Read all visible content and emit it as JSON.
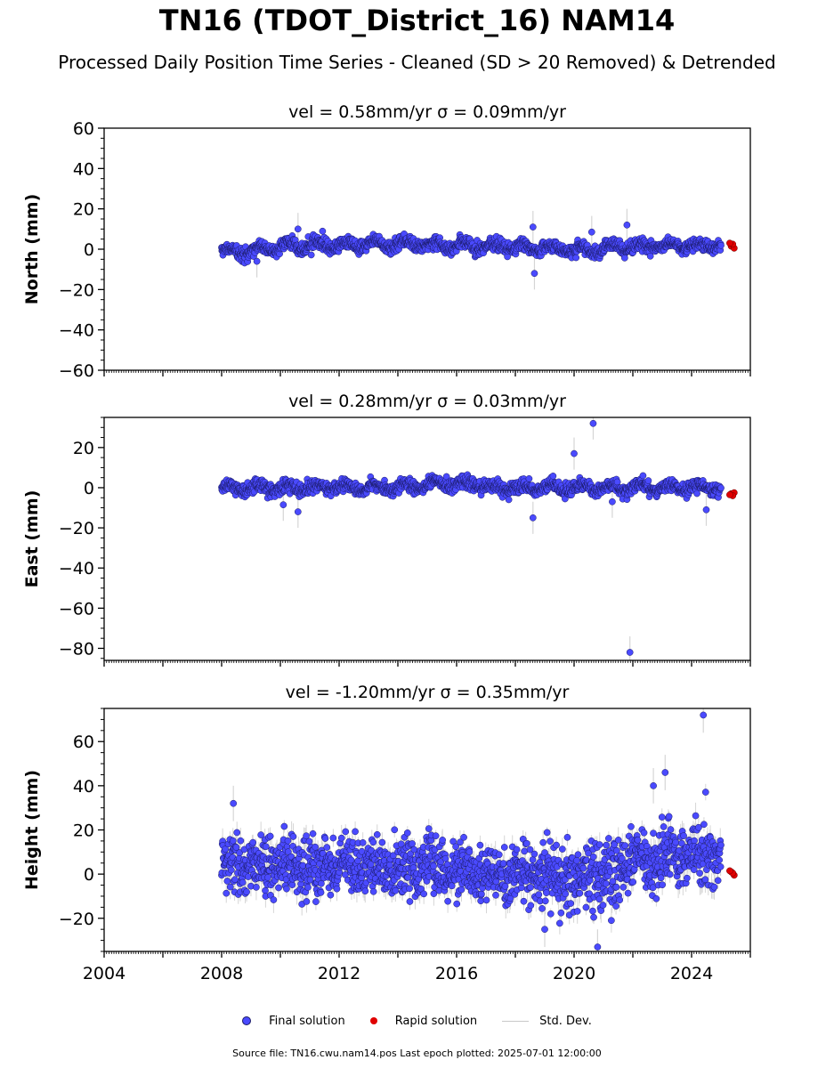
{
  "title": "TN16 (TDOT_District_16) NAM14",
  "subtitle": "Processed Daily Position Time Series - Cleaned (SD > 20 Removed) & Detrended",
  "legend": {
    "final": "Final solution",
    "rapid": "Rapid solution",
    "std": "Std. Dev."
  },
  "footer": "Source file: TN16.cwu.nam14.pos  Last epoch plotted: 2025-07-01 12:00:00",
  "colors": {
    "final": "#4a4aff",
    "rapid": "#e00000",
    "std": "#c8c8c8",
    "edge": "#1a1a66"
  },
  "chart_data": [
    {
      "type": "scatter",
      "name": "north",
      "title": "vel = 0.58mm/yr   σ = 0.09mm/yr",
      "ylabel": "North (mm)",
      "xlim": [
        2004.0,
        2026.0
      ],
      "ylim": [
        -60,
        60
      ],
      "yticks": [
        -60,
        -40,
        -20,
        0,
        20,
        40,
        60
      ],
      "yticklabels": [
        "−60",
        "−40",
        "−20",
        "0",
        "20",
        "40",
        "60"
      ],
      "final_range": [
        2008.0,
        2025.0
      ],
      "scatter_sd": 1.6,
      "err_sd": 1.8,
      "seasonal": [
        {
          "x0": 2008.0,
          "x1": 2010.0,
          "y0": -1.5,
          "y1": 0.5
        },
        {
          "x0": 2010.0,
          "x1": 2015.0,
          "y0": 1.5,
          "y1": 3.0
        },
        {
          "x0": 2015.0,
          "x1": 2019.0,
          "y0": 2.0,
          "y1": 1.0
        },
        {
          "x0": 2019.0,
          "x1": 2021.0,
          "y0": 0.0,
          "y1": -0.5
        },
        {
          "x0": 2021.0,
          "x1": 2025.0,
          "y0": 1.0,
          "y1": 2.0
        }
      ],
      "outliers": [
        {
          "x": 2010.6,
          "y": 10
        },
        {
          "x": 2018.6,
          "y": 11
        },
        {
          "x": 2018.65,
          "y": -12
        },
        {
          "x": 2021.8,
          "y": 12
        },
        {
          "x": 2020.6,
          "y": 8.5
        },
        {
          "x": 2009.2,
          "y": -6
        }
      ],
      "rapid": [
        {
          "x": 2025.35,
          "y": 1.5
        },
        {
          "x": 2025.45,
          "y": 0.5
        },
        {
          "x": 2025.4,
          "y": 2.5
        },
        {
          "x": 2025.3,
          "y": 3
        }
      ]
    },
    {
      "type": "scatter",
      "name": "east",
      "title": "vel = 0.28mm/yr   σ = 0.03mm/yr",
      "ylabel": "East (mm)",
      "xlim": [
        2004.0,
        2026.0
      ],
      "ylim": [
        -86,
        35
      ],
      "yticks": [
        -80,
        -60,
        -40,
        -20,
        0,
        20
      ],
      "yticklabels": [
        "−80",
        "−60",
        "−40",
        "−20",
        "0",
        "20"
      ],
      "final_range": [
        2008.0,
        2025.0
      ],
      "scatter_sd": 1.6,
      "err_sd": 1.8,
      "seasonal": [
        {
          "x0": 2008.0,
          "x1": 2015.0,
          "y0": -0.5,
          "y1": 0.5
        },
        {
          "x0": 2015.0,
          "x1": 2017.0,
          "y0": 2.0,
          "y1": 2.0
        },
        {
          "x0": 2017.0,
          "x1": 2025.0,
          "y0": 0.0,
          "y1": 0.0
        }
      ],
      "outliers": [
        {
          "x": 2010.1,
          "y": -8.5
        },
        {
          "x": 2010.6,
          "y": -12
        },
        {
          "x": 2018.6,
          "y": -15
        },
        {
          "x": 2020.0,
          "y": 17
        },
        {
          "x": 2020.65,
          "y": 32
        },
        {
          "x": 2021.9,
          "y": -82
        },
        {
          "x": 2024.5,
          "y": -11
        },
        {
          "x": 2021.3,
          "y": -7
        }
      ],
      "rapid": [
        {
          "x": 2025.35,
          "y": -3
        },
        {
          "x": 2025.45,
          "y": -2.5
        },
        {
          "x": 2025.4,
          "y": -4
        },
        {
          "x": 2025.3,
          "y": -3.5
        }
      ]
    },
    {
      "type": "scatter",
      "name": "height",
      "title": "vel = -1.20mm/yr   σ = 0.35mm/yr",
      "ylabel": "Height (mm)",
      "xlim": [
        2004.0,
        2026.0
      ],
      "ylim": [
        -35,
        75
      ],
      "yticks": [
        -20,
        0,
        20,
        40,
        60
      ],
      "yticklabels": [
        "−20",
        "0",
        "20",
        "40",
        "60"
      ],
      "xticks": [
        2004,
        2008,
        2012,
        2016,
        2020,
        2024
      ],
      "xticklabels": [
        "2004",
        "2008",
        "2012",
        "2016",
        "2020",
        "2024"
      ],
      "final_range": [
        2008.0,
        2025.0
      ],
      "scatter_sd": 7.0,
      "err_sd": 6.0,
      "seasonal": [
        {
          "x0": 2008.0,
          "x1": 2012.0,
          "y0": 4.0,
          "y1": 4.0
        },
        {
          "x0": 2012.0,
          "x1": 2019.0,
          "y0": 3.0,
          "y1": 1.0
        },
        {
          "x0": 2019.0,
          "x1": 2021.5,
          "y0": -2.0,
          "y1": 0.0
        },
        {
          "x0": 2021.5,
          "x1": 2025.0,
          "y0": 6.0,
          "y1": 10.0
        }
      ],
      "outliers": [
        {
          "x": 2024.4,
          "y": 72
        },
        {
          "x": 2023.1,
          "y": 46
        },
        {
          "x": 2008.4,
          "y": 32
        },
        {
          "x": 2020.8,
          "y": -33
        },
        {
          "x": 2022.7,
          "y": 40
        },
        {
          "x": 2019.0,
          "y": -25
        }
      ],
      "rapid": [
        {
          "x": 2025.35,
          "y": 1
        },
        {
          "x": 2025.45,
          "y": -0.5
        },
        {
          "x": 2025.4,
          "y": 0.5
        },
        {
          "x": 2025.3,
          "y": 1.5
        }
      ]
    }
  ]
}
